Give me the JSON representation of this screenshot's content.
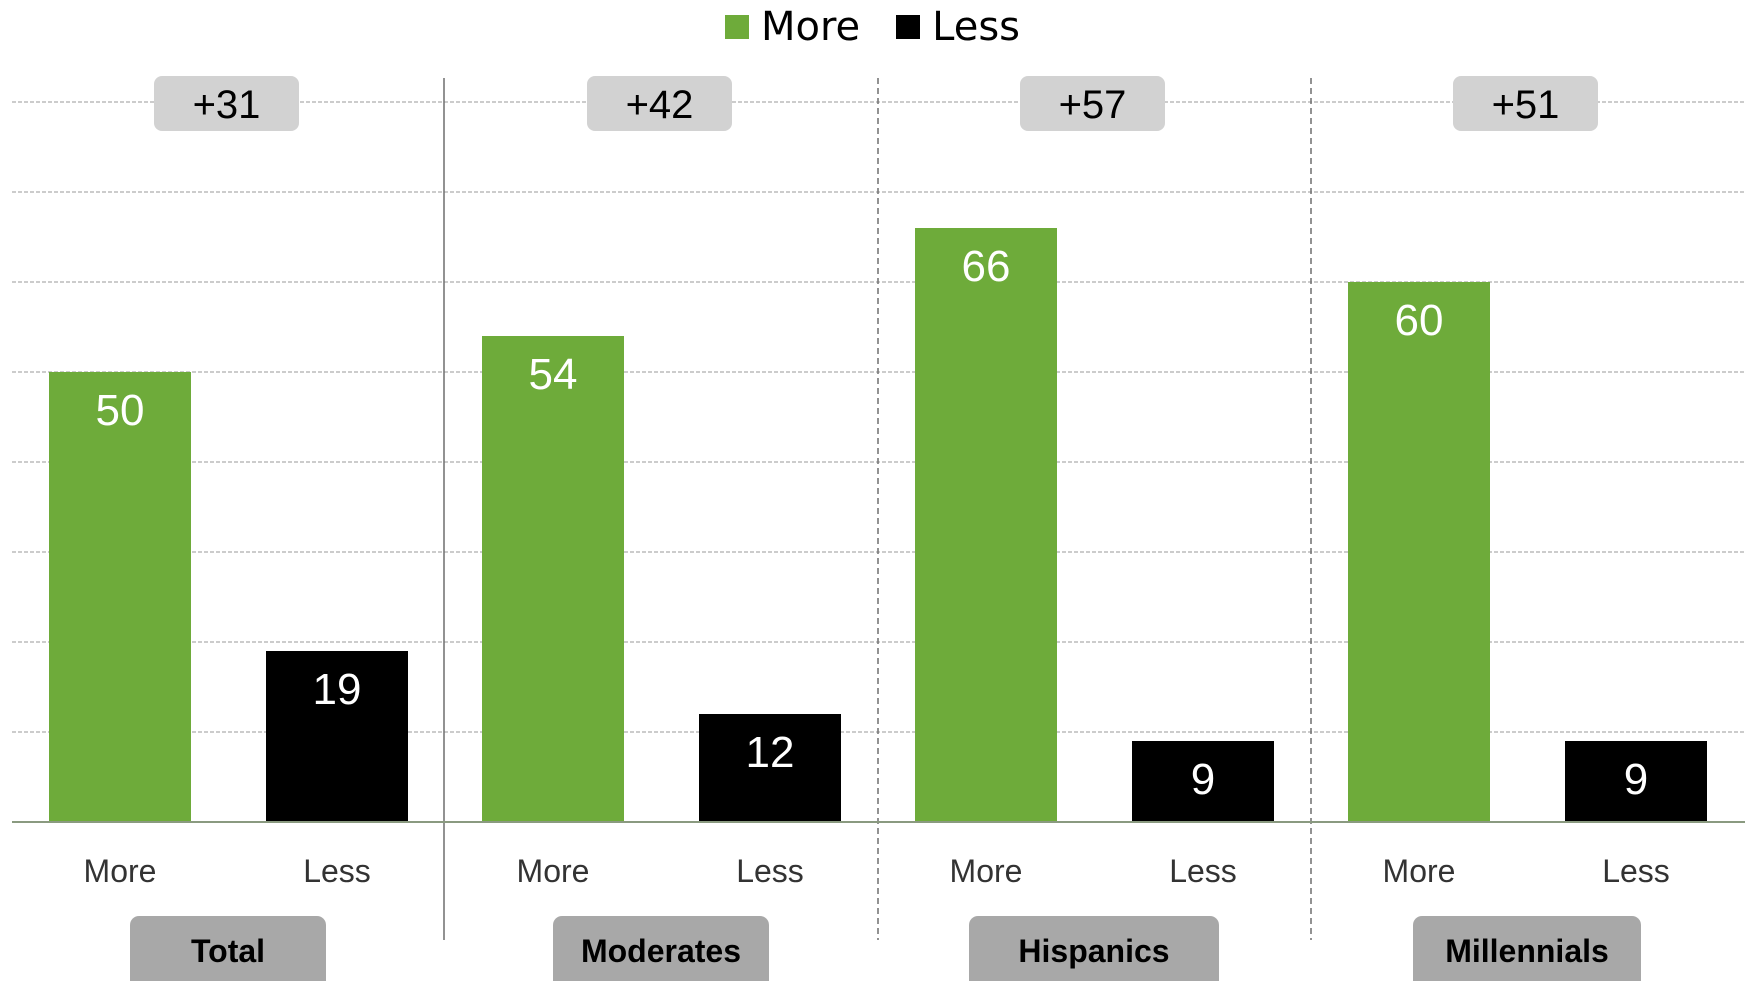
{
  "chart_data": {
    "type": "bar",
    "legend": {
      "position": "top-center",
      "items": [
        {
          "label": "More",
          "color": "#6EAB3A"
        },
        {
          "label": "Less",
          "color": "#000000"
        }
      ]
    },
    "groups": [
      {
        "name": "Total",
        "diff": "+31",
        "categories": [
          "More",
          "Less"
        ],
        "values": [
          50,
          19
        ]
      },
      {
        "name": "Moderates",
        "diff": "+42",
        "categories": [
          "More",
          "Less"
        ],
        "values": [
          54,
          12
        ]
      },
      {
        "name": "Hispanics",
        "diff": "+57",
        "categories": [
          "More",
          "Less"
        ],
        "values": [
          66,
          9
        ]
      },
      {
        "name": "Millennials",
        "diff": "+51",
        "categories": [
          "More",
          "Less"
        ],
        "values": [
          60,
          9
        ]
      }
    ],
    "ylim": [
      0,
      80
    ],
    "grid": true,
    "colors": {
      "more": "#6EAB3A",
      "less": "#000000",
      "badge": "#D2D2D2",
      "label_box": "#A8A8A8"
    }
  }
}
